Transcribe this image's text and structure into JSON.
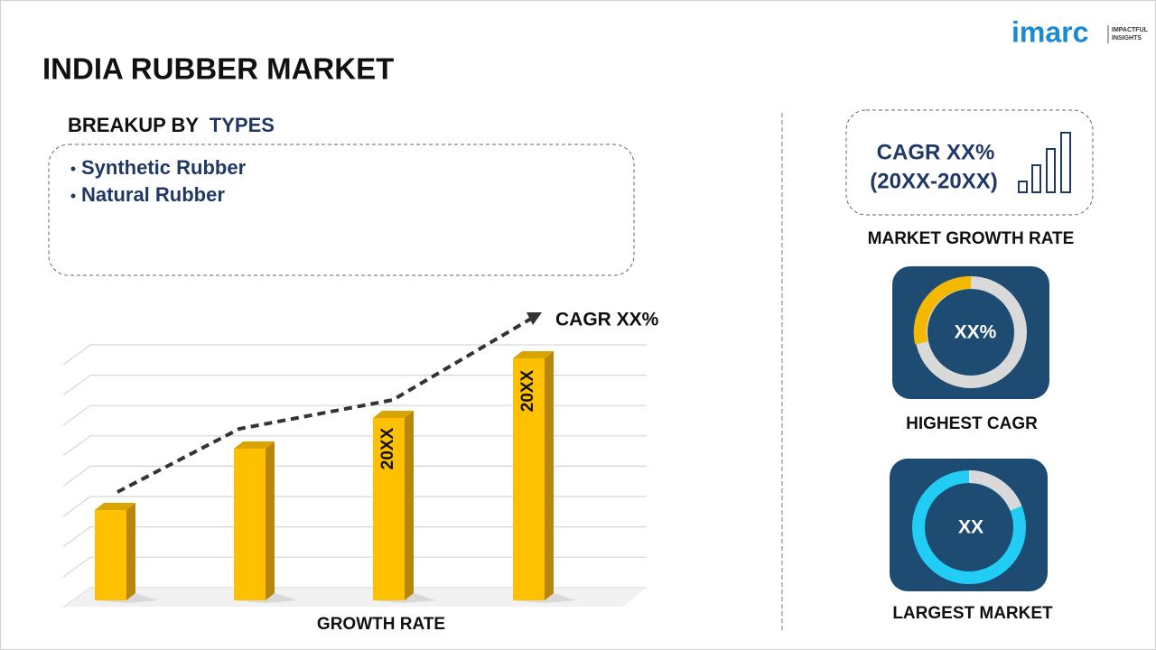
{
  "header": {
    "title": "INDIA RUBBER MARKET",
    "logo": {
      "name": "imarc",
      "tagline": [
        "IMPACTFUL",
        "INSIGHTS"
      ]
    }
  },
  "breakup": {
    "label": "BREAKUP BY",
    "highlight": "TYPES",
    "items": [
      "Synthetic Rubber",
      "Natural Rubber"
    ]
  },
  "growth_chart": {
    "bar_labels": [
      "20XX",
      "20XX"
    ],
    "trend_label": "CAGR XX%",
    "axis_label": "GROWTH RATE"
  },
  "cards": [
    {
      "lines": [
        "CAGR XX%",
        "(20XX-20XX)"
      ],
      "caption": "MARKET GROWTH RATE"
    },
    {
      "value": "XX%",
      "caption": "HIGHEST CAGR"
    },
    {
      "value": "XX",
      "caption": "LARGEST MARKET"
    }
  ]
}
